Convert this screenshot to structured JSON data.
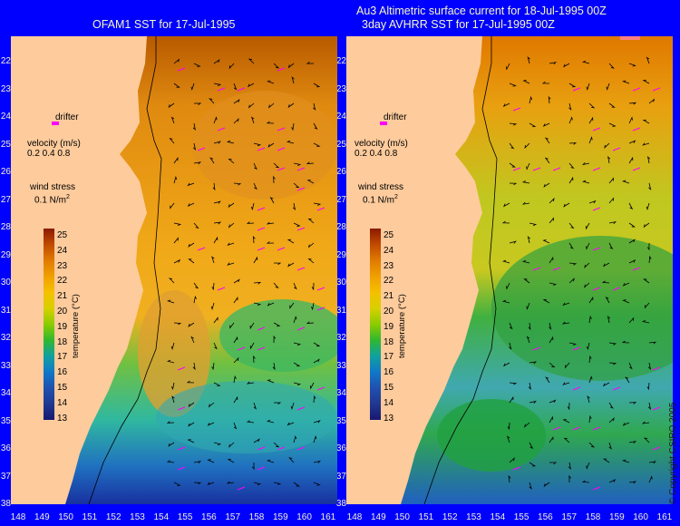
{
  "titles": {
    "left": "OFAM1 SST for 17-Jul-1995",
    "right_line1": "Au3 Altimetric surface current for 18-Jul-1995 00Z",
    "right_line2": "3day AVHRR SST for 17-Jul-1995 00Z"
  },
  "axes": {
    "latitudes": [
      "22",
      "23",
      "24",
      "25",
      "26",
      "27",
      "28",
      "29",
      "30",
      "31",
      "32",
      "33",
      "34",
      "35",
      "36",
      "37",
      "38"
    ],
    "longitudes": [
      "148",
      "149",
      "150",
      "151",
      "152",
      "153",
      "154",
      "155",
      "156",
      "157",
      "158",
      "159",
      "160",
      "161"
    ]
  },
  "legend": {
    "drifter": "drifter",
    "velocity_title": "velocity (m/s)",
    "velocity_values": "0.2 0.4 0.8",
    "wind_title": "wind stress",
    "wind_value": "0.1 N/m",
    "wind_exp": "2"
  },
  "colorbar": {
    "title": "temperature (°C)",
    "ticks": [
      "25",
      "24",
      "23",
      "22",
      "21",
      "20",
      "19",
      "18",
      "17",
      "16",
      "15",
      "14",
      "13"
    ],
    "colors": [
      "#8b1a00",
      "#c04a00",
      "#e07a00",
      "#f0a000",
      "#f5c000",
      "#d8d000",
      "#8ccc00",
      "#30b830",
      "#10a0a0",
      "#1078c8",
      "#2050b0",
      "#203890",
      "#181870"
    ]
  },
  "copyright": "© Copyright CSIRO 2005",
  "colors": {
    "background": "#0000ff",
    "land": "#fdcb9c",
    "vector_current": "#000000",
    "vector_wind": "#ff00ff"
  }
}
